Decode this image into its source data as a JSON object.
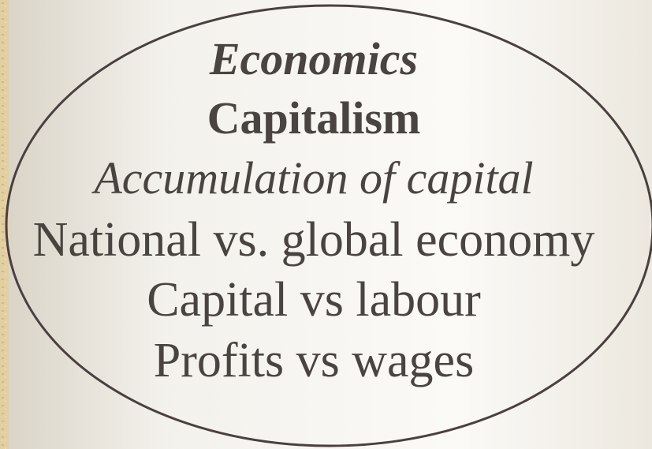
{
  "slide": {
    "lines": [
      {
        "text": "Economics"
      },
      {
        "text": "Capitalism"
      },
      {
        "text": "Accumulation of capital"
      },
      {
        "text": "National vs. global economy"
      },
      {
        "text": "Capital vs labour"
      },
      {
        "text": "Profits vs wages"
      }
    ]
  }
}
